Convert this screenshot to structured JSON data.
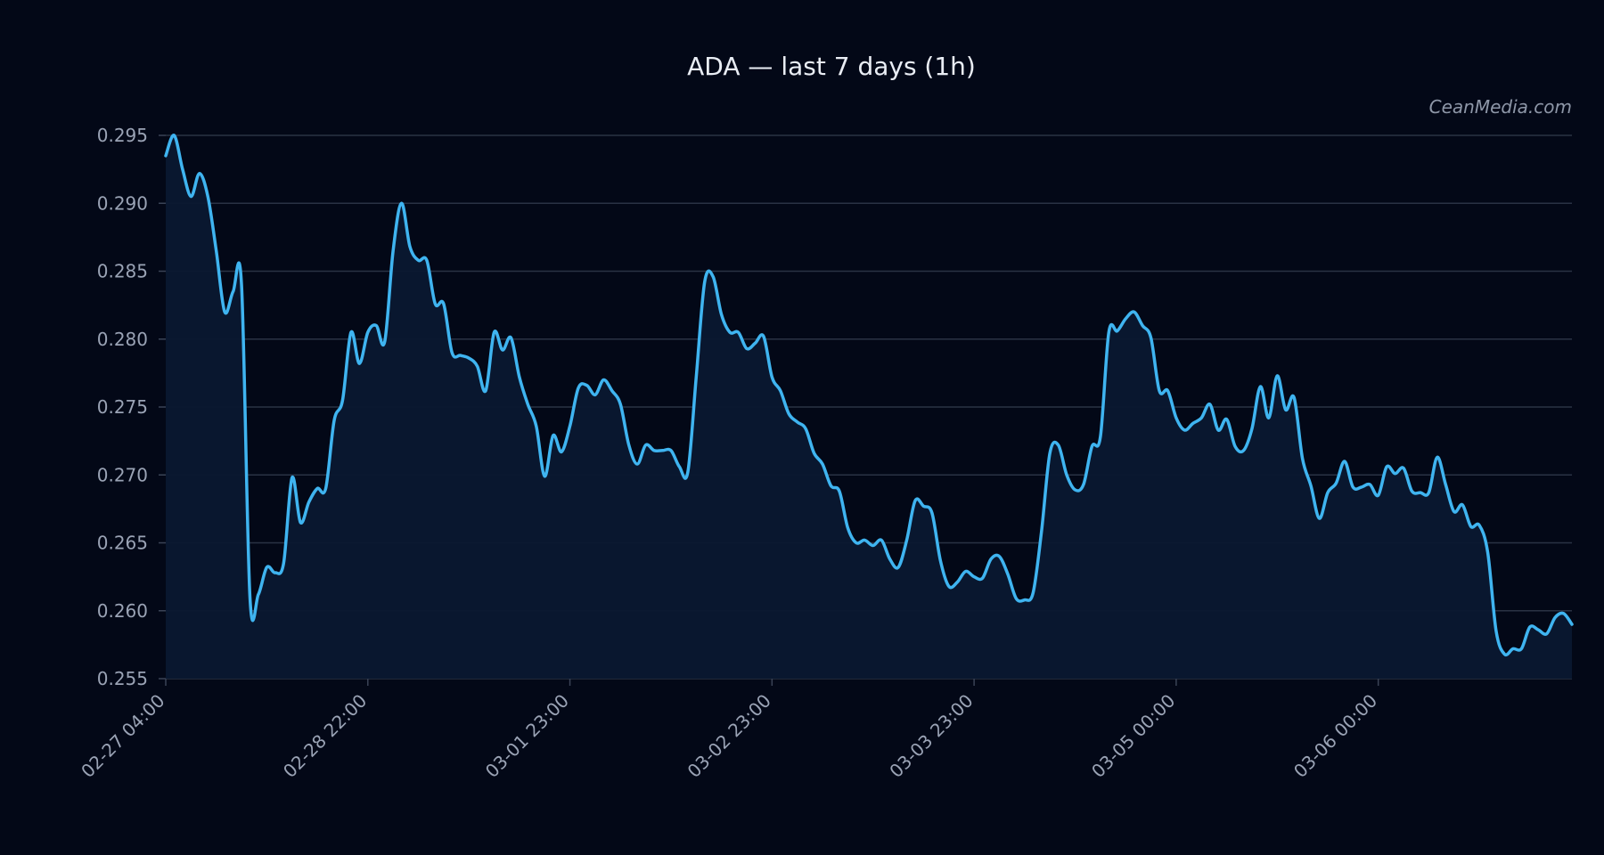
{
  "chart_data": {
    "type": "area",
    "title": "ADA — last 7 days (1h)",
    "xlabel": "",
    "ylabel": "",
    "ylim": [
      0.255,
      0.295
    ],
    "y_ticks": [
      "0.295",
      "0.290",
      "0.285",
      "0.280",
      "0.275",
      "0.270",
      "0.265",
      "0.260",
      "0.255"
    ],
    "x_tick_labels": [
      "02-27 04:00",
      "02-28 22:00",
      "03-01 23:00",
      "03-02 23:00",
      "03-03 23:00",
      "03-05 00:00",
      "03-06 00:00"
    ],
    "x_tick_index": [
      0,
      24,
      48,
      72,
      96,
      120,
      144
    ],
    "grid": true,
    "line_color": "#3fb4f0",
    "fill_color": "#0a1830",
    "series": [
      {
        "values": [
          0.2935,
          0.295,
          0.2925,
          0.2905,
          0.2922,
          0.2905,
          0.2865,
          0.282,
          0.2835,
          0.284,
          0.261,
          0.2612,
          0.2632,
          0.2628,
          0.2635,
          0.2698,
          0.2665,
          0.268,
          0.269,
          0.269,
          0.274,
          0.2755,
          0.2805,
          0.2782,
          0.2805,
          0.281,
          0.2798,
          0.2865,
          0.29,
          0.2868,
          0.2858,
          0.2858,
          0.2826,
          0.2826,
          0.279,
          0.2788,
          0.2786,
          0.278,
          0.2762,
          0.2805,
          0.2792,
          0.2801,
          0.2772,
          0.2752,
          0.2736,
          0.2699,
          0.2729,
          0.2717,
          0.2736,
          0.2764,
          0.2766,
          0.2759,
          0.277,
          0.2762,
          0.2752,
          0.2722,
          0.2708,
          0.2722,
          0.2718,
          0.2718,
          0.2718,
          0.2706,
          0.2702,
          0.2772,
          0.2842,
          0.2846,
          0.2818,
          0.2805,
          0.2805,
          0.2793,
          0.2797,
          0.2802,
          0.2772,
          0.2762,
          0.2745,
          0.2739,
          0.2734,
          0.2716,
          0.2708,
          0.2692,
          0.2688,
          0.2661,
          0.265,
          0.2652,
          0.2648,
          0.2652,
          0.2638,
          0.2632,
          0.2652,
          0.2681,
          0.2677,
          0.2672,
          0.2637,
          0.2618,
          0.2621,
          0.2629,
          0.2625,
          0.2624,
          0.2638,
          0.264,
          0.2627,
          0.2609,
          0.2608,
          0.2613,
          0.2658,
          0.2716,
          0.2722,
          0.27,
          0.2689,
          0.2693,
          0.2721,
          0.2728,
          0.2805,
          0.2806,
          0.2815,
          0.282,
          0.281,
          0.2801,
          0.2762,
          0.2762,
          0.2742,
          0.2733,
          0.2738,
          0.2742,
          0.2752,
          0.2733,
          0.2741,
          0.2721,
          0.2718,
          0.2734,
          0.2765,
          0.2742,
          0.2773,
          0.2748,
          0.2757,
          0.2712,
          0.2692,
          0.2668,
          0.2687,
          0.2694,
          0.271,
          0.2691,
          0.2691,
          0.2693,
          0.2685,
          0.2706,
          0.2701,
          0.2705,
          0.2688,
          0.2687,
          0.2687,
          0.2713,
          0.2693,
          0.2673,
          0.2678,
          0.2662,
          0.2663,
          0.2643,
          0.2585,
          0.2568,
          0.2572,
          0.2572,
          0.2588,
          0.2586,
          0.2583,
          0.2595,
          0.2598,
          0.259
        ]
      }
    ]
  },
  "watermark": "CeanMedia.com"
}
